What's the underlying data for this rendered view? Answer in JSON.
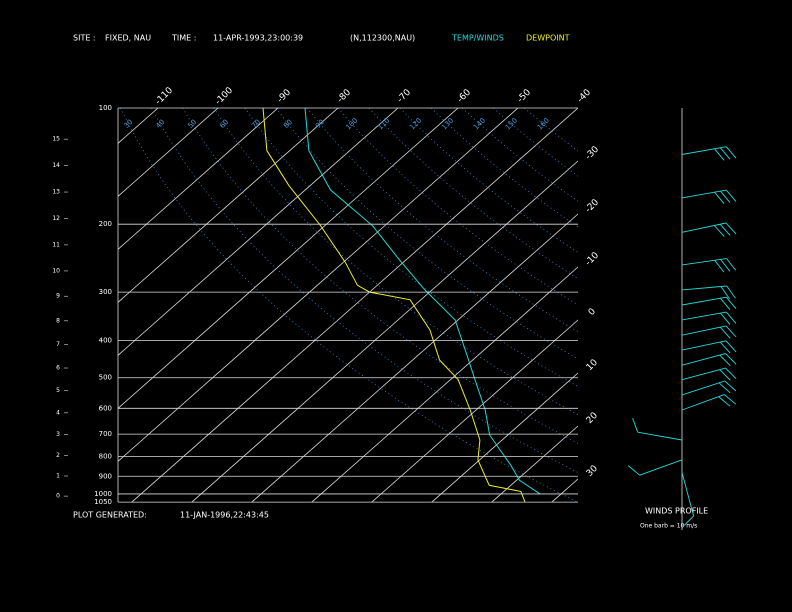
{
  "header": {
    "site_label": "SITE :",
    "site": "FIXED, NAU",
    "time_label": "TIME :",
    "time": "11-APR-1993,23:00:39",
    "station": "(N,112300,NAU)"
  },
  "footer": {
    "generated_label": "PLOT GENERATED:",
    "generated": "11-JAN-1996,22:43:45",
    "winds_title": "WINDS PROFILE",
    "winds_note": "One barb = 10 m/s"
  },
  "chart_data": {
    "type": "skewt",
    "pressure_levels": [
      100,
      200,
      300,
      400,
      500,
      600,
      700,
      800,
      900,
      1000,
      1050
    ],
    "height_km": [
      0,
      1,
      2,
      3,
      4,
      5,
      6,
      7,
      8,
      9,
      10,
      11,
      12,
      13,
      14,
      15
    ],
    "isotherms": [
      -110,
      -100,
      -90,
      -80,
      -70,
      -60,
      -50,
      -40,
      -30,
      -20,
      -10,
      0,
      10,
      20,
      30
    ],
    "dry_adiabats": [
      30,
      40,
      50,
      60,
      70,
      80,
      90,
      100,
      110,
      120,
      130,
      140,
      150,
      160
    ],
    "series": [
      {
        "name": "TEMP/WINDS",
        "color": "#22d8d8",
        "pressure": [
          100,
          129,
          163,
          202,
          248,
          296,
          354,
          424,
          506,
          606,
          704,
          769,
          841,
          922,
          1000
        ],
        "values": [
          -85.5,
          -76.8,
          -65.8,
          -52,
          -41,
          -31.2,
          -20.5,
          -13.1,
          -5.9,
          1.5,
          7,
          11.5,
          16.1,
          20.5,
          26.5
        ]
      },
      {
        "name": "DEWPOINT",
        "color": "#f0f020",
        "pressure": [
          100,
          129,
          159,
          201,
          251,
          288,
          300,
          314,
          376,
          450,
          506,
          606,
          725,
          816,
          894,
          950,
          985,
          1049
        ],
        "values": [
          -92.5,
          -83.8,
          -73.5,
          -60.9,
          -49.7,
          -43.3,
          -40,
          -31.8,
          -22.8,
          -15.5,
          -8.7,
          -1,
          6.3,
          9.7,
          13.7,
          16.4,
          22.8,
          25.5
        ]
      }
    ],
    "winds": {
      "pressure": [
        132,
        171,
        210,
        255,
        296,
        324,
        354,
        388,
        424,
        464,
        506,
        554,
        606,
        725,
        816,
        880
      ],
      "direction": [
        80,
        80,
        78,
        82,
        85,
        80,
        80,
        78,
        78,
        75,
        75,
        72,
        70,
        280,
        250,
        165
      ],
      "speed": [
        30,
        30,
        30,
        30,
        20,
        20,
        20,
        20,
        20,
        20,
        20,
        20,
        20,
        10,
        10,
        10
      ]
    }
  }
}
